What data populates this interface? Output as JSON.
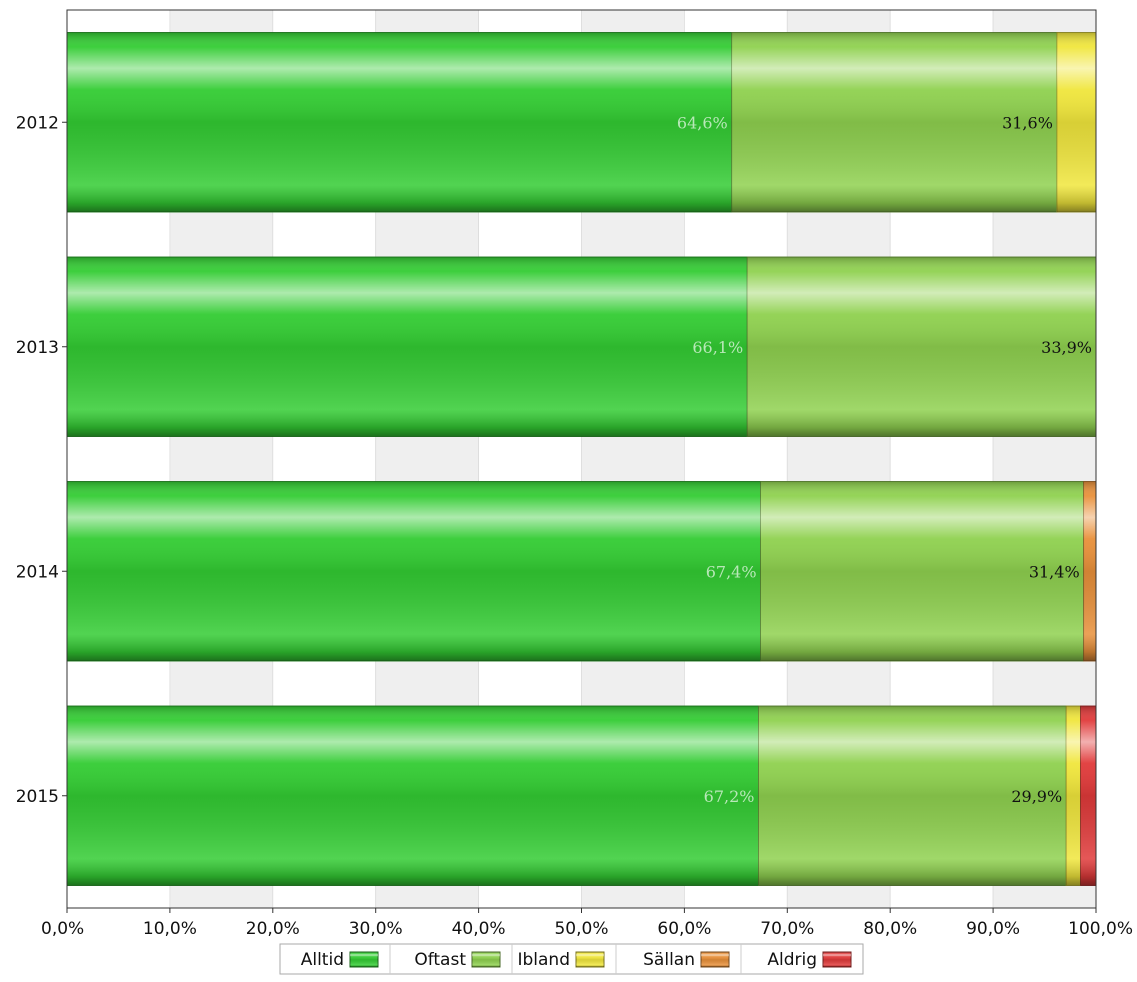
{
  "chart_data": {
    "type": "bar",
    "orientation": "horizontal",
    "stacked": true,
    "categories": [
      "2012",
      "2013",
      "2014",
      "2015"
    ],
    "series": [
      {
        "name": "Alltid",
        "color": "#33cc33",
        "values": [
          64.6,
          66.1,
          67.4,
          67.2
        ],
        "labels": [
          "64,6%",
          "66,1%",
          "67,4%",
          "67,2%"
        ]
      },
      {
        "name": "Oftast",
        "color": "#8fd14f",
        "values": [
          31.6,
          33.9,
          31.4,
          29.9
        ],
        "labels": [
          "31,6%",
          "33,9%",
          "31,4%",
          "29,9%"
        ]
      },
      {
        "name": "Ibland",
        "color": "#f0e63c",
        "values": [
          3.8,
          0,
          0,
          1.4
        ],
        "labels": [
          "",
          "",
          "",
          ""
        ]
      },
      {
        "name": "Sällan",
        "color": "#e8903a",
        "values": [
          0,
          0,
          1.2,
          0
        ],
        "labels": [
          "",
          "",
          "",
          ""
        ]
      },
      {
        "name": "Aldrig",
        "color": "#e03a3a",
        "values": [
          0,
          0,
          0,
          1.5
        ],
        "labels": [
          "",
          "",
          "",
          ""
        ]
      }
    ],
    "xlim": [
      0,
      100
    ],
    "xticks": [
      0,
      10,
      20,
      30,
      40,
      50,
      60,
      70,
      80,
      90,
      100
    ],
    "xtick_labels": [
      "0,0%",
      "10,0%",
      "20,0%",
      "30,0%",
      "40,0%",
      "50,0%",
      "60,0%",
      "70,0%",
      "80,0%",
      "90,0%",
      "100,0%"
    ],
    "grid": "alternating vertical bands",
    "legend": "bottom"
  }
}
